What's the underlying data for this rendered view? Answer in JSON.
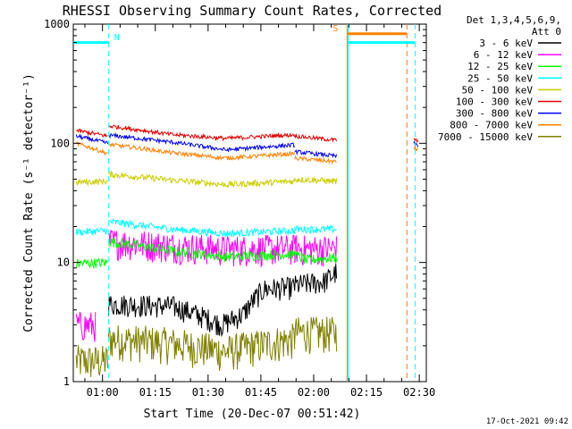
{
  "chart_data": {
    "type": "line",
    "title": "RHESSI Observing Summary Count Rates, Corrected",
    "xlabel": "Start Time (20-Dec-07 00:51:42)",
    "ylabel": "Corrected Count Rate (s⁻¹ detector⁻¹)",
    "yscale": "log",
    "ylim": [
      1,
      1000
    ],
    "xlim_minutes": [
      51.7,
      152.0
    ],
    "y_ticks": [
      {
        "value": 1,
        "label": "1"
      },
      {
        "value": 10,
        "label": "10"
      },
      {
        "value": 100,
        "label": "100"
      },
      {
        "value": 1000,
        "label": "1000"
      }
    ],
    "x_ticks": [
      {
        "value": 60,
        "label": "01:00"
      },
      {
        "value": 75,
        "label": "01:15"
      },
      {
        "value": 90,
        "label": "01:30"
      },
      {
        "value": 105,
        "label": "01:45"
      },
      {
        "value": 120,
        "label": "02:00"
      },
      {
        "value": 135,
        "label": "02:15"
      },
      {
        "value": 150,
        "label": "02:30"
      }
    ],
    "legend": {
      "placement": "right",
      "header1": "Det 1,3,4,5,6,9,",
      "header2": "Att 0",
      "entries": [
        {
          "label": "3 - 6 keV",
          "color": "#000000"
        },
        {
          "label": "6 - 12 keV",
          "color": "#ff00ff"
        },
        {
          "label": "12 - 25 keV",
          "color": "#00ff00"
        },
        {
          "label": "25 - 50 keV",
          "color": "#00ffff"
        },
        {
          "label": "50 - 100 keV",
          "color": "#cccc00"
        },
        {
          "label": "100 - 300 keV",
          "color": "#dd0000"
        },
        {
          "label": "300 - 800 keV",
          "color": "#0000ff"
        },
        {
          "label": "800 - 7000 keV",
          "color": "#ff8000"
        },
        {
          "label": "7000 - 15000 keV",
          "color": "#808000"
        }
      ]
    },
    "series": [
      {
        "name": "3 - 6 keV",
        "color": "#000000",
        "noise": 0.22,
        "segments": [
          {
            "x": [
              61.7,
              80,
              94,
              100,
              106,
              114.6
            ],
            "y": [
              4.5,
              4.3,
              3.0,
              3.7,
              6.0,
              6.2
            ]
          },
          {
            "x": [
              114.6,
              117.0,
              123.0,
              126.5
            ],
            "y": [
              6.4,
              6.6,
              6.9,
              8.3
            ]
          }
        ]
      },
      {
        "name": "6 - 12 keV",
        "color": "#ff00ff",
        "noise": 0.3,
        "segments": [
          {
            "x": [
              52.5,
              58.0
            ],
            "y": [
              3.0,
              3.0
            ]
          },
          {
            "x": [
              61.7,
              80,
              95,
              114.6
            ],
            "y": [
              15.0,
              13.8,
              13.0,
              13.2
            ]
          },
          {
            "x": [
              114.6,
              118.0,
              126.5
            ],
            "y": [
              13.4,
              13.0,
              13.2
            ]
          }
        ]
      },
      {
        "name": "12 - 25 keV",
        "color": "#00ff00",
        "noise": 0.1,
        "segments": [
          {
            "x": [
              52.5,
              61.5
            ],
            "y": [
              9.8,
              10.0
            ]
          },
          {
            "x": [
              61.7,
              80,
              95,
              114.6
            ],
            "y": [
              15.0,
              12.5,
              11.2,
              11.8
            ]
          },
          {
            "x": [
              114.6,
              118.0,
              126.5
            ],
            "y": [
              11.5,
              10.5,
              11.0
            ]
          }
        ]
      },
      {
        "name": "25 - 50 keV",
        "color": "#00ffff",
        "noise": 0.07,
        "segments": [
          {
            "x": [
              52.5,
              61.5
            ],
            "y": [
              18.0,
              18.5
            ]
          },
          {
            "x": [
              61.7,
              80,
              95,
              114.6
            ],
            "y": [
              22.0,
              19.0,
              17.5,
              18.5
            ]
          },
          {
            "x": [
              114.6,
              126.5
            ],
            "y": [
              19.0,
              19.0
            ]
          }
        ]
      },
      {
        "name": "50 - 100 keV",
        "color": "#cccc00",
        "noise": 0.06,
        "segments": [
          {
            "x": [
              52.5,
              61.5
            ],
            "y": [
              47.0,
              48.0
            ]
          },
          {
            "x": [
              61.7,
              80,
              95,
              114.6
            ],
            "y": [
              55.0,
              49.0,
              45.0,
              48.0
            ]
          },
          {
            "x": [
              114.6,
              126.5
            ],
            "y": [
              50.0,
              48.0
            ]
          }
        ]
      },
      {
        "name": "100 - 300 keV",
        "color": "#dd0000",
        "noise": 0.04,
        "segments": [
          {
            "x": [
              52.5,
              61.5
            ],
            "y": [
              128.0,
              115.0
            ]
          },
          {
            "x": [
              61.7,
              80,
              95,
              114.6
            ],
            "y": [
              140.0,
              118.0,
              110.0,
              118.0
            ]
          },
          {
            "x": [
              114.6,
              126.5
            ],
            "y": [
              115.0,
              106.0
            ]
          },
          {
            "x": [
              148.4,
              149.6
            ],
            "y": [
              108.0,
              103.0
            ]
          }
        ]
      },
      {
        "name": "300 - 800 keV",
        "color": "#0000ff",
        "noise": 0.04,
        "segments": [
          {
            "x": [
              52.5,
              61.5
            ],
            "y": [
              115.0,
              100.0
            ]
          },
          {
            "x": [
              61.7,
              80,
              95,
              114.6
            ],
            "y": [
              117.0,
              102.0,
              88.0,
              97.0
            ]
          },
          {
            "x": [
              114.6,
              126.5
            ],
            "y": [
              85.0,
              78.0
            ]
          },
          {
            "x": [
              148.4,
              149.6
            ],
            "y": [
              100.0,
              96.0
            ]
          }
        ]
      },
      {
        "name": "800 - 7000 keV",
        "color": "#ff8000",
        "noise": 0.04,
        "segments": [
          {
            "x": [
              52.5,
              61.5
            ],
            "y": [
              100.0,
              82.0
            ]
          },
          {
            "x": [
              61.7,
              80,
              95,
              114.6
            ],
            "y": [
              98.0,
              83.0,
              75.0,
              82.0
            ]
          },
          {
            "x": [
              114.6,
              126.5
            ],
            "y": [
              75.0,
              70.0
            ]
          },
          {
            "x": [
              148.4,
              149.6
            ],
            "y": [
              92.0,
              88.0
            ]
          }
        ]
      },
      {
        "name": "7000 - 15000 keV",
        "color": "#808000",
        "noise": 0.35,
        "segments": [
          {
            "x": [
              52.5,
              61.5
            ],
            "y": [
              1.5,
              1.5
            ]
          },
          {
            "x": [
              61.7,
              80,
              95,
              114.6
            ],
            "y": [
              2.3,
              2.1,
              1.8,
              2.3
            ]
          },
          {
            "x": [
              114.6,
              126.5
            ],
            "y": [
              2.6,
              2.6
            ]
          }
        ]
      }
    ],
    "annotations": [
      {
        "label": "N",
        "kind": "night",
        "x": 61.8,
        "color": "#00ffff",
        "bar_from": 51.7,
        "bar_to": 61.8,
        "y": 700
      },
      {
        "label": "S",
        "kind": "saa",
        "x": 128.5,
        "color": "#ff8000",
        "bar_from": 129.5,
        "bar_to": 146.5,
        "y": 830
      },
      {
        "label": "",
        "kind": "night",
        "x": 148.8,
        "color": "#00ffff",
        "bar_from": 129.8,
        "bar_to": 148.8,
        "y": 700
      }
    ],
    "vertical_lines": [
      {
        "x": 61.8,
        "color": "#00ffff",
        "style": "dashed"
      },
      {
        "x": 129.5,
        "color": "#ff8000",
        "style": "solid"
      },
      {
        "x": 129.8,
        "color": "#00ffff",
        "style": "solid"
      },
      {
        "x": 146.5,
        "color": "#ff8000",
        "style": "dashed"
      },
      {
        "x": 148.8,
        "color": "#00ffff",
        "style": "dashed"
      }
    ],
    "footer_timestamp": "17-Oct-2021 09:42"
  }
}
